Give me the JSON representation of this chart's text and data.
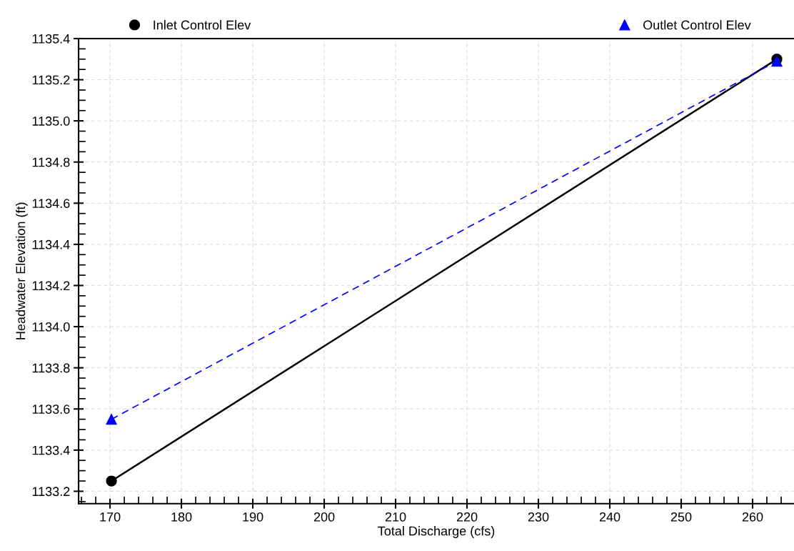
{
  "chart_data": {
    "type": "line",
    "xlabel": "Total Discharge (cfs)",
    "ylabel": "Headwater Elevation (ft)",
    "x": [
      170.2,
      263.4
    ],
    "series": [
      {
        "name": "Inlet Control Elev",
        "color": "#000000",
        "values": [
          1133.25,
          1135.3
        ],
        "marker": "circle",
        "line_style": "solid"
      },
      {
        "name": "Outlet Control Elev",
        "color": "#0000ff",
        "values": [
          1133.55,
          1135.29
        ],
        "marker": "triangle",
        "line_style": "dashed"
      }
    ],
    "xlim": [
      165.6,
      265.8
    ],
    "xticks": [
      170,
      180,
      190,
      200,
      210,
      220,
      230,
      240,
      250,
      260
    ],
    "ylim": [
      1133.14,
      1135.4
    ],
    "yticks": [
      {
        "value": 1133.2,
        "label": "1133.2"
      },
      {
        "value": 1133.4,
        "label": "1133.4"
      },
      {
        "value": 1133.6,
        "label": "1133.6"
      },
      {
        "value": 1133.8,
        "label": "1133.8"
      },
      {
        "value": 1134.0,
        "label": "1134.0"
      },
      {
        "value": 1134.2,
        "label": "1134.2"
      },
      {
        "value": 1134.4,
        "label": "1134.4"
      },
      {
        "value": 1134.6,
        "label": "1134.6"
      },
      {
        "value": 1134.8,
        "label": "1134.8"
      },
      {
        "value": 1135.0,
        "label": "1135.0"
      },
      {
        "value": 1135.2,
        "label": "1135.2"
      },
      {
        "value": 1135.4,
        "label": "1135.4"
      }
    ],
    "grid": true,
    "legend": "top"
  }
}
